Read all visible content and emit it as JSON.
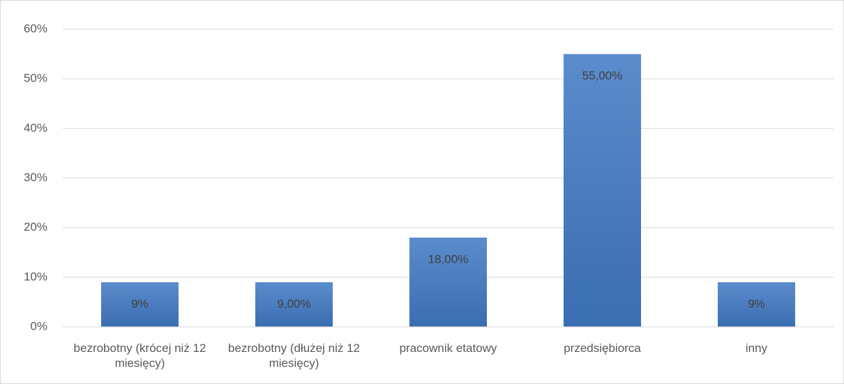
{
  "chart_data": {
    "type": "bar",
    "categories": [
      "bezrobotny (krócej niż 12 miesięcy)",
      "bezrobotny (dłużej niż 12 miesięcy)",
      "pracownik etatowy",
      "przedsiębiorca",
      "inny"
    ],
    "values": [
      9,
      9,
      18,
      55,
      9
    ],
    "value_labels": [
      "9%",
      "9,00%",
      "18,00%",
      "55,00%",
      "9%"
    ],
    "color": "#4a7ebb",
    "ylim": [
      0,
      60
    ],
    "yticks": [
      {
        "value": 0,
        "label": "0%"
      },
      {
        "value": 10,
        "label": "10%"
      },
      {
        "value": 20,
        "label": "20%"
      },
      {
        "value": 30,
        "label": "30%"
      },
      {
        "value": 40,
        "label": "40%"
      },
      {
        "value": 50,
        "label": "50%"
      },
      {
        "value": 60,
        "label": "60%"
      }
    ],
    "grid": true
  }
}
